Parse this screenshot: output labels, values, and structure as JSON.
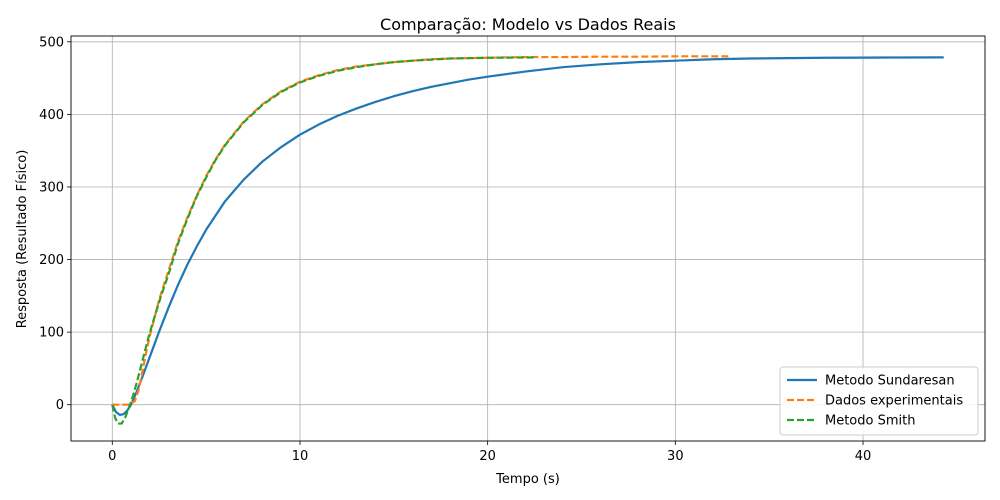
{
  "chart_data": {
    "type": "line",
    "title": "Comparação: Modelo vs Dados Reais",
    "xlabel": "Tempo (s)",
    "ylabel": "Resposta (Resultado Físico)",
    "xlim": [
      -2.2,
      46.5
    ],
    "ylim": [
      -50,
      508
    ],
    "xticks": [
      0,
      10,
      20,
      30,
      40
    ],
    "xtick_labels": [
      "0",
      "10",
      "20",
      "30",
      "40"
    ],
    "yticks": [
      0,
      100,
      200,
      300,
      400,
      500
    ],
    "ytick_labels": [
      "0",
      "100",
      "200",
      "300",
      "400",
      "500"
    ],
    "grid": true,
    "legend_position": "lower-right",
    "series": [
      {
        "name": "Metodo Sundaresan",
        "color": "#1f77b4",
        "style": "solid",
        "x": [
          0,
          0.2,
          0.4,
          0.6,
          0.8,
          1.0,
          1.3,
          1.6,
          2.0,
          2.5,
          3,
          3.5,
          4,
          4.5,
          5,
          6,
          7,
          8,
          9,
          10,
          11,
          12,
          13,
          14,
          15,
          16,
          17,
          18,
          19,
          20,
          22,
          24,
          26,
          28,
          30,
          32,
          34,
          36,
          38,
          40,
          42,
          44.3
        ],
        "y": [
          0,
          -10,
          -14,
          -13,
          -8,
          0,
          18,
          38,
          66,
          101,
          134,
          165,
          193,
          218,
          241,
          280,
          310,
          335,
          355,
          372,
          386,
          398,
          408,
          417,
          425,
          432,
          438,
          443,
          448,
          452,
          459,
          465,
          469,
          472,
          474,
          476,
          477,
          477.5,
          478,
          478.2,
          478.4,
          478.5
        ]
      },
      {
        "name": "Dados experimentais",
        "color": "#ff7f0e",
        "style": "dashed",
        "x": [
          0,
          0.3,
          0.6,
          0.9,
          1.2,
          1.4,
          1.6,
          1.8,
          2.0,
          2.2,
          2.5,
          3,
          3.5,
          4,
          4.5,
          5,
          5.5,
          6,
          7,
          8,
          9,
          10,
          11,
          12,
          13,
          14,
          15,
          16,
          17,
          18,
          20,
          22,
          24,
          26,
          28,
          30,
          32.9
        ],
        "y": [
          0,
          0,
          0,
          0,
          5,
          20,
          45,
          72,
          95,
          115,
          145,
          185,
          225,
          258,
          288,
          315,
          338,
          358,
          390,
          414,
          432,
          445,
          454,
          461,
          466,
          469,
          472,
          474,
          476,
          477,
          478,
          479,
          479,
          479.5,
          479.5,
          480,
          480
        ]
      },
      {
        "name": "Metodo Smith",
        "color": "#2ca02c",
        "style": "dashed",
        "x": [
          0,
          0.15,
          0.3,
          0.5,
          0.7,
          0.9,
          1.1,
          1.3,
          1.5,
          1.7,
          1.9,
          2.1,
          2.3,
          2.6,
          3,
          3.5,
          4,
          4.5,
          5,
          5.5,
          6,
          7,
          8,
          9,
          10,
          11,
          12,
          13,
          14,
          15,
          16,
          17,
          18,
          20,
          22.5
        ],
        "y": [
          0,
          -18,
          -26,
          -26,
          -17,
          -3,
          12,
          30,
          50,
          70,
          90,
          108,
          125,
          150,
          180,
          222,
          256,
          287,
          313,
          337,
          357,
          389,
          413,
          431,
          444,
          453,
          460,
          465,
          469,
          472,
          474,
          475.5,
          477,
          478,
          478.5
        ]
      }
    ]
  }
}
